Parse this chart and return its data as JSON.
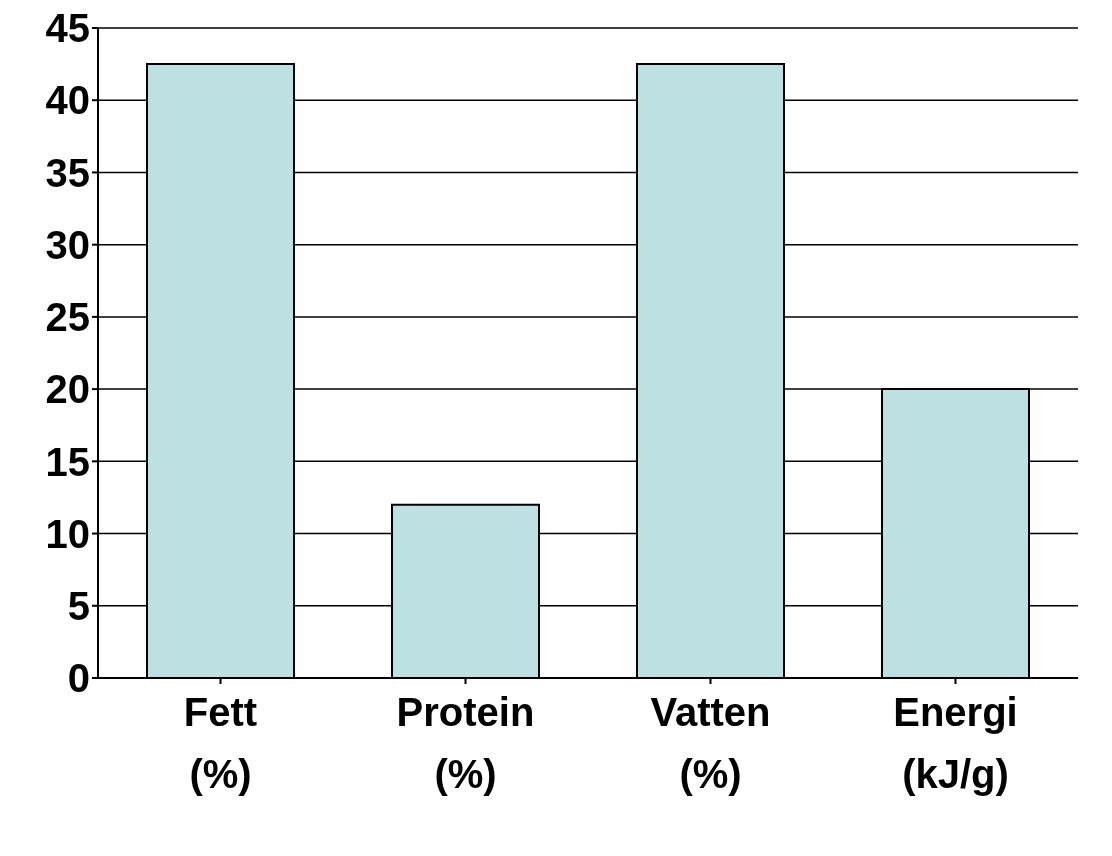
{
  "chart_data": {
    "type": "bar",
    "categories": [
      "Fett\n(%)",
      "Protein\n(%)",
      "Vatten\n(%)",
      "Energi\n(kJ/g)"
    ],
    "values": [
      42.5,
      12,
      42.5,
      20
    ],
    "color": "#bde0e3",
    "ylim": [
      0,
      45
    ],
    "yticks": [
      0,
      5,
      10,
      15,
      20,
      25,
      30,
      35,
      40,
      45
    ],
    "grid": "y"
  }
}
